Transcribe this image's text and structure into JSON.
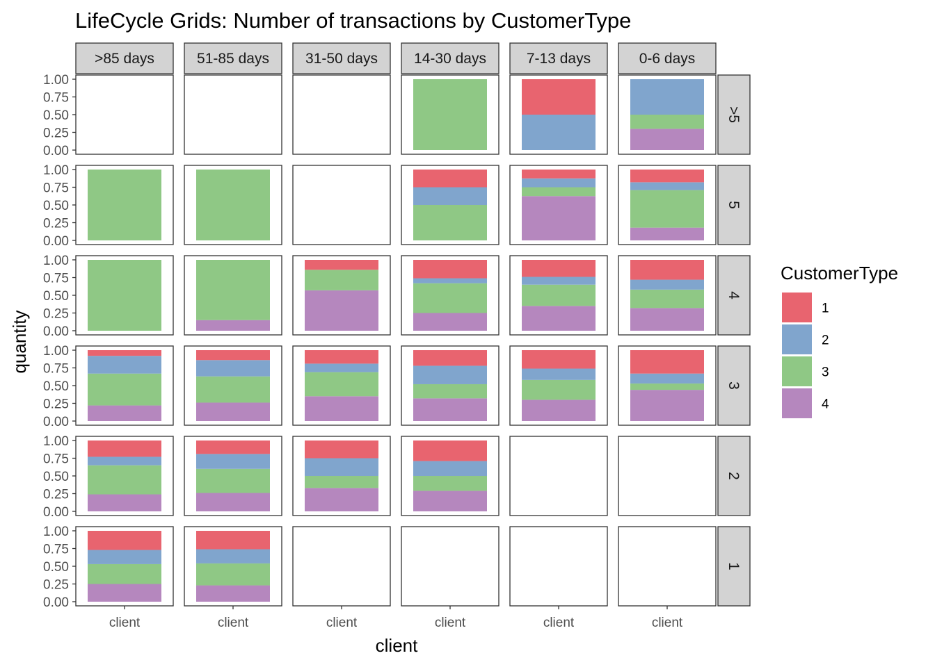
{
  "chart_data": {
    "type": "bar",
    "stacked": true,
    "title": "LifeCycle Grids: Number of transactions by CustomerType",
    "xlabel": "client",
    "ylabel": "quantity",
    "x_category": "client",
    "ylim": [
      0,
      1
    ],
    "yticks": [
      "0.00",
      "0.25",
      "0.50",
      "0.75",
      "1.00"
    ],
    "grid": false,
    "facet_columns": [
      ">85 days",
      "51-85 days",
      "31-50 days",
      "14-30 days",
      "7-13 days",
      "0-6 days"
    ],
    "facet_rows": [
      ">5",
      "5",
      "4",
      "3",
      "2",
      "1"
    ],
    "legend": {
      "title": "CustomerType",
      "position": "right",
      "items": [
        {
          "label": "1",
          "color": "#E8646F"
        },
        {
          "label": "2",
          "color": "#80A5CD"
        },
        {
          "label": "3",
          "color": "#8FC885"
        },
        {
          "label": "4",
          "color": "#B587BE"
        }
      ]
    },
    "stack_order_bottom_to_top": [
      "4",
      "3",
      "2",
      "1"
    ],
    "panels": [
      {
        "row": ">5",
        "col": ">85 days",
        "values": null
      },
      {
        "row": ">5",
        "col": "51-85 days",
        "values": null
      },
      {
        "row": ">5",
        "col": "31-50 days",
        "values": null
      },
      {
        "row": ">5",
        "col": "14-30 days",
        "values": {
          "1": 0,
          "2": 0,
          "3": 1.0,
          "4": 0
        }
      },
      {
        "row": ">5",
        "col": "7-13 days",
        "values": {
          "1": 0.5,
          "2": 0.5,
          "3": 0,
          "4": 0
        }
      },
      {
        "row": ">5",
        "col": "0-6 days",
        "values": {
          "1": 0,
          "2": 0.5,
          "3": 0.2,
          "4": 0.3
        }
      },
      {
        "row": "5",
        "col": ">85 days",
        "values": {
          "1": 0,
          "2": 0,
          "3": 1.0,
          "4": 0
        }
      },
      {
        "row": "5",
        "col": "51-85 days",
        "values": {
          "1": 0,
          "2": 0,
          "3": 1.0,
          "4": 0
        }
      },
      {
        "row": "5",
        "col": "31-50 days",
        "values": null
      },
      {
        "row": "5",
        "col": "14-30 days",
        "values": {
          "1": 0.25,
          "2": 0.25,
          "3": 0.5,
          "4": 0
        }
      },
      {
        "row": "5",
        "col": "7-13 days",
        "values": {
          "1": 0.125,
          "2": 0.125,
          "3": 0.125,
          "4": 0.625
        }
      },
      {
        "row": "5",
        "col": "0-6 days",
        "values": {
          "1": 0.18,
          "2": 0.11,
          "3": 0.53,
          "4": 0.18
        }
      },
      {
        "row": "4",
        "col": ">85 days",
        "values": {
          "1": 0,
          "2": 0,
          "3": 1.0,
          "4": 0
        }
      },
      {
        "row": "4",
        "col": "51-85 days",
        "values": {
          "1": 0,
          "2": 0,
          "3": 0.85,
          "4": 0.15
        }
      },
      {
        "row": "4",
        "col": "31-50 days",
        "values": {
          "1": 0.14,
          "2": 0,
          "3": 0.29,
          "4": 0.57
        }
      },
      {
        "row": "4",
        "col": "14-30 days",
        "values": {
          "1": 0.26,
          "2": 0.07,
          "3": 0.42,
          "4": 0.25
        }
      },
      {
        "row": "4",
        "col": "7-13 days",
        "values": {
          "1": 0.24,
          "2": 0.11,
          "3": 0.3,
          "4": 0.35
        }
      },
      {
        "row": "4",
        "col": "0-6 days",
        "values": {
          "1": 0.28,
          "2": 0.14,
          "3": 0.26,
          "4": 0.32
        }
      },
      {
        "row": "3",
        "col": ">85 days",
        "values": {
          "1": 0.08,
          "2": 0.25,
          "3": 0.45,
          "4": 0.22
        }
      },
      {
        "row": "3",
        "col": "51-85 days",
        "values": {
          "1": 0.14,
          "2": 0.23,
          "3": 0.37,
          "4": 0.26
        }
      },
      {
        "row": "3",
        "col": "31-50 days",
        "values": {
          "1": 0.19,
          "2": 0.12,
          "3": 0.34,
          "4": 0.35
        }
      },
      {
        "row": "3",
        "col": "14-30 days",
        "values": {
          "1": 0.22,
          "2": 0.26,
          "3": 0.2,
          "4": 0.32
        }
      },
      {
        "row": "3",
        "col": "7-13 days",
        "values": {
          "1": 0.26,
          "2": 0.16,
          "3": 0.28,
          "4": 0.3
        }
      },
      {
        "row": "3",
        "col": "0-6 days",
        "values": {
          "1": 0.33,
          "2": 0.14,
          "3": 0.09,
          "4": 0.44
        }
      },
      {
        "row": "2",
        "col": ">85 days",
        "values": {
          "1": 0.23,
          "2": 0.12,
          "3": 0.41,
          "4": 0.24
        }
      },
      {
        "row": "2",
        "col": "51-85 days",
        "values": {
          "1": 0.19,
          "2": 0.21,
          "3": 0.34,
          "4": 0.26
        }
      },
      {
        "row": "2",
        "col": "31-50 days",
        "values": {
          "1": 0.25,
          "2": 0.25,
          "3": 0.17,
          "4": 0.33
        }
      },
      {
        "row": "2",
        "col": "14-30 days",
        "values": {
          "1": 0.29,
          "2": 0.21,
          "3": 0.21,
          "4": 0.29
        }
      },
      {
        "row": "2",
        "col": "7-13 days",
        "values": null
      },
      {
        "row": "2",
        "col": "0-6 days",
        "values": null
      },
      {
        "row": "1",
        "col": ">85 days",
        "values": {
          "1": 0.27,
          "2": 0.2,
          "3": 0.28,
          "4": 0.25
        }
      },
      {
        "row": "1",
        "col": "51-85 days",
        "values": {
          "1": 0.26,
          "2": 0.2,
          "3": 0.31,
          "4": 0.23
        }
      },
      {
        "row": "1",
        "col": "31-50 days",
        "values": null
      },
      {
        "row": "1",
        "col": "14-30 days",
        "values": null
      },
      {
        "row": "1",
        "col": "7-13 days",
        "values": null
      },
      {
        "row": "1",
        "col": "0-6 days",
        "values": null
      }
    ]
  }
}
